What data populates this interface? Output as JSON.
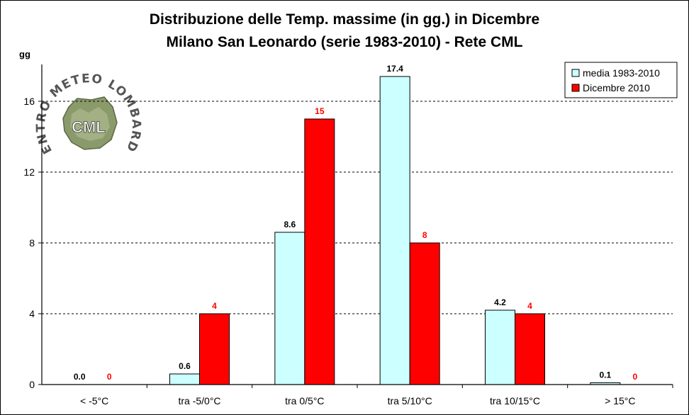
{
  "chart_data": {
    "type": "bar",
    "title": "Distribuzione delle Temp. massime (in gg.) in Dicembre",
    "subtitle": "Milano San Leonardo (serie 1983-2010) - Rete CML",
    "ylabel": "gg",
    "xlabel": "",
    "ylim": [
      0,
      18
    ],
    "yticks": [
      0,
      4,
      8,
      12,
      16
    ],
    "grid": true,
    "legend_position": "top-right",
    "categories": [
      "< -5°C",
      "tra -5/0°C",
      "tra 0/5°C",
      "tra 5/10°C",
      "tra 10/15°C",
      "> 15°C"
    ],
    "series": [
      {
        "name": "media 1983-2010",
        "values": [
          0.0,
          0.6,
          8.6,
          17.4,
          4.2,
          0.1
        ],
        "labels": [
          "0.0",
          "0.6",
          "8.6",
          "17.4",
          "4.2",
          "0.1"
        ],
        "color": "#ccffff",
        "label_color": "#000000"
      },
      {
        "name": "Dicembre 2010",
        "values": [
          0,
          4,
          15,
          8,
          4,
          0
        ],
        "labels": [
          "0",
          "4",
          "15",
          "8",
          "4",
          "0"
        ],
        "color": "#ff0000",
        "label_color": "#ff0000"
      }
    ]
  },
  "logo": {
    "arc_text": "CENTRO METEO LOMBARDO",
    "center_text": "CML"
  }
}
